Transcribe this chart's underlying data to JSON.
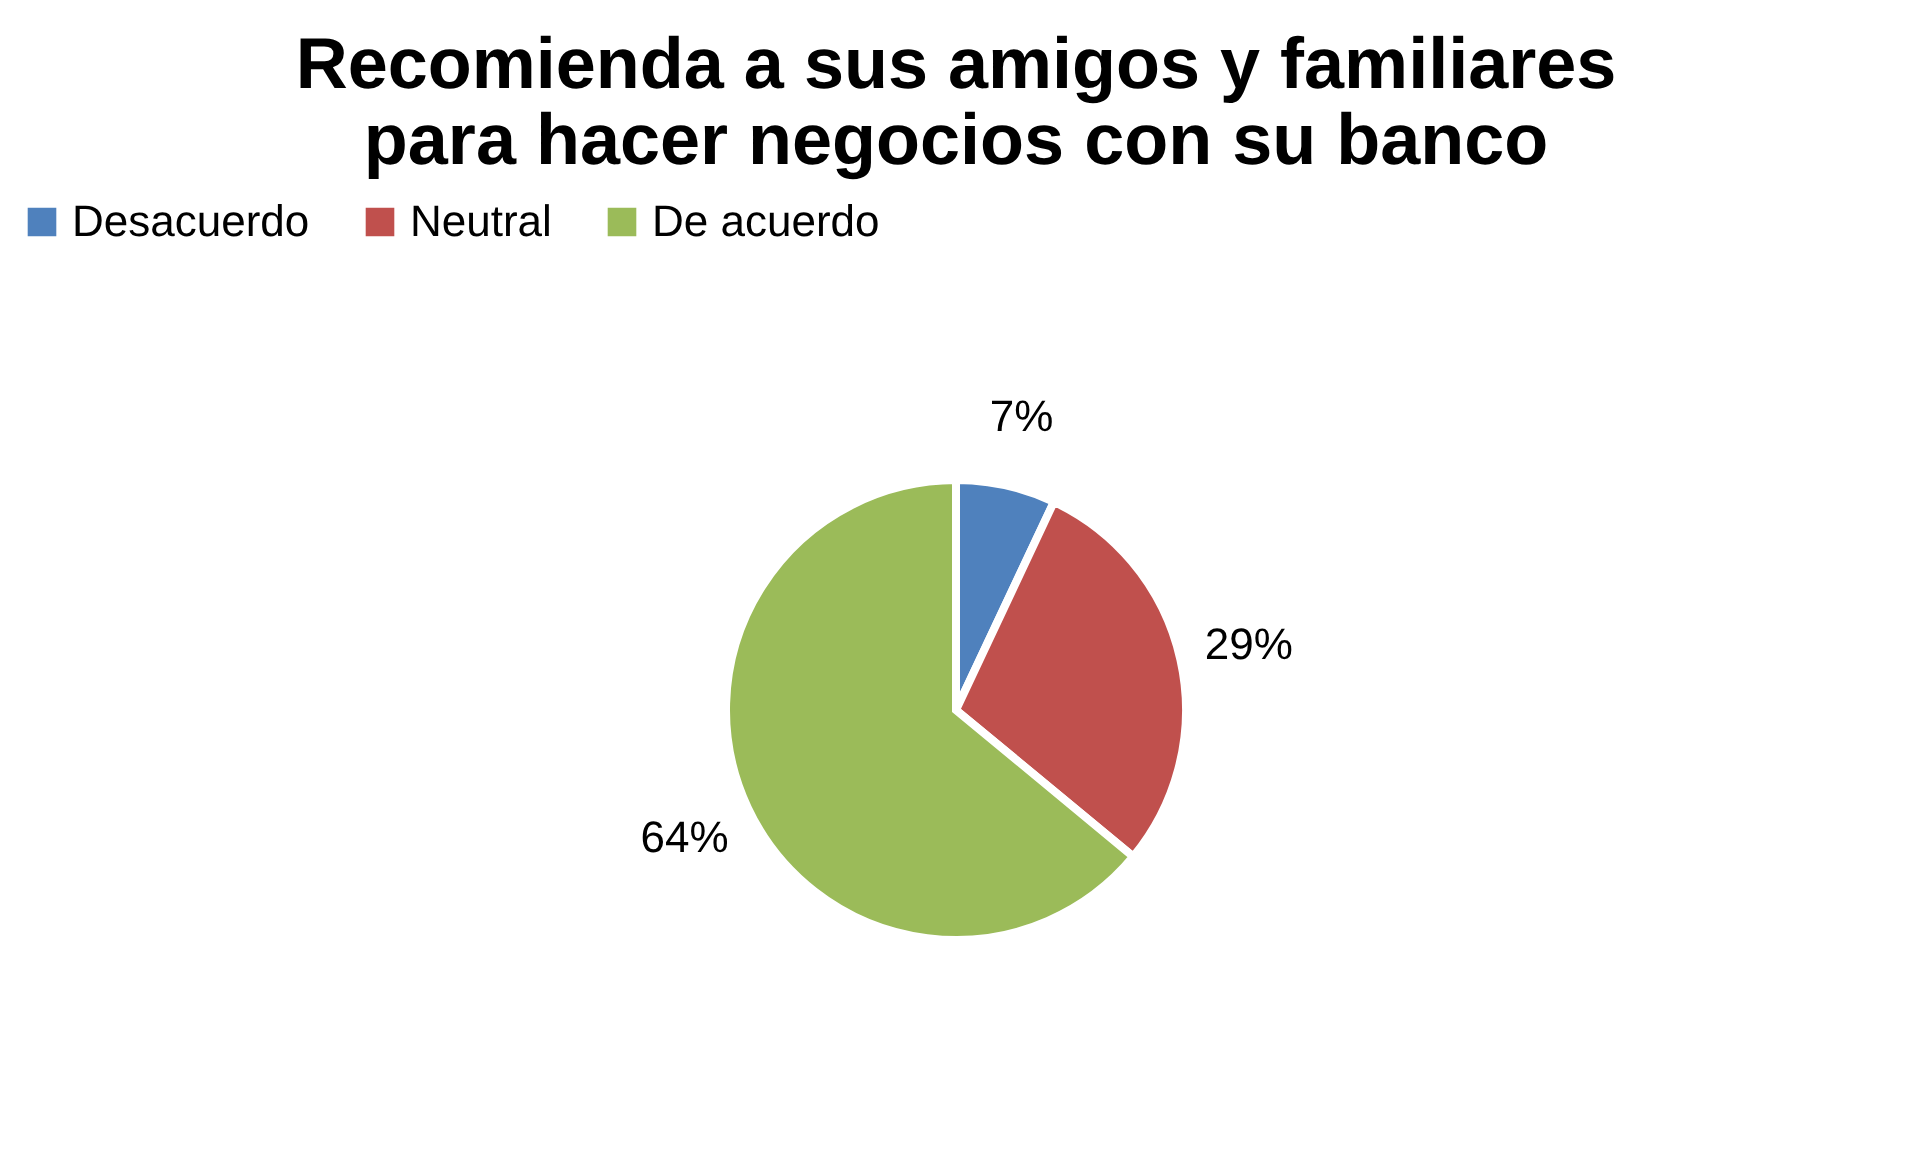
{
  "chart_data": {
    "type": "pie",
    "title": [
      "Recomienda a sus amigos y familiares",
      "para hacer negocios con su banco"
    ],
    "categories": [
      "Desacuerdo",
      "Neutral",
      "De acuerdo"
    ],
    "values": [
      7,
      29,
      64
    ],
    "colors": [
      "#4f81bd",
      "#c0504d",
      "#9bbb59"
    ],
    "value_labels": [
      "7%",
      "29%",
      "64%"
    ],
    "legend": "top"
  }
}
